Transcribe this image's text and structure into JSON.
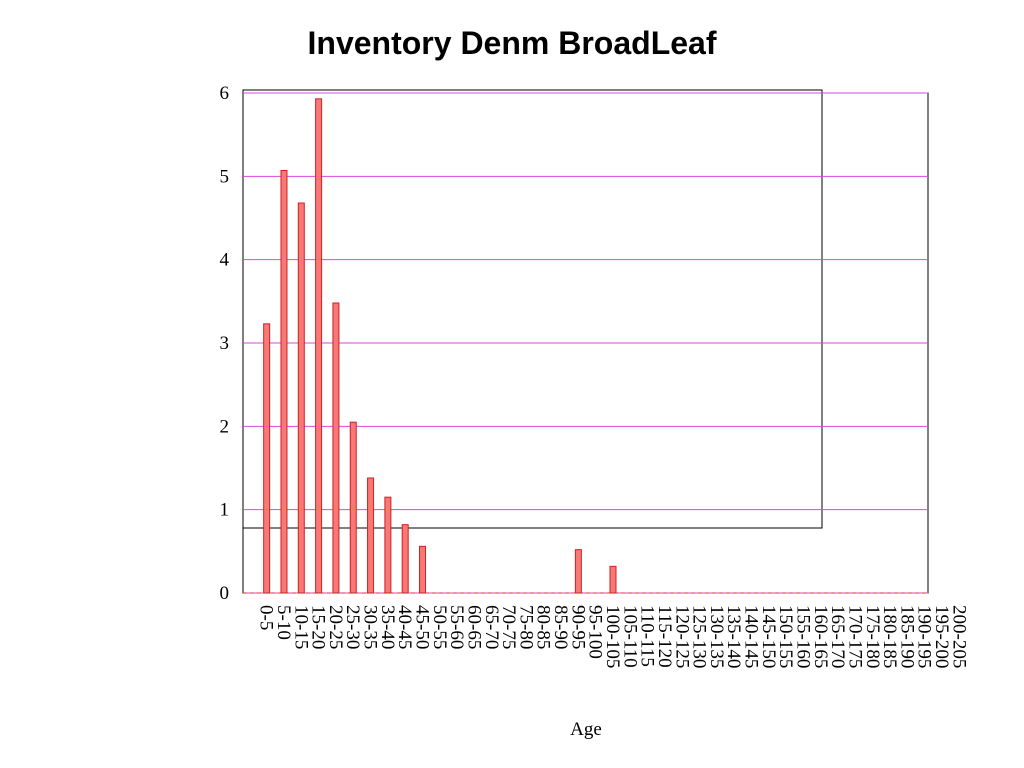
{
  "chart_data": {
    "type": "bar",
    "title": "Inventory Denm BroadLeaf",
    "x_label": "Age",
    "categories": [
      "0-5",
      "5-10",
      "10-15",
      "15-20",
      "20-25",
      "25-30",
      "30-35",
      "35-40",
      "40-45",
      "45-50",
      "50-55",
      "55-60",
      "60-65",
      "65-70",
      "70-75",
      "75-80",
      "80-85",
      "85-90",
      "90-95",
      "95-100",
      "100-105",
      "105-110",
      "110-115",
      "115-120",
      "120-125",
      "125-130",
      "130-135",
      "135-140",
      "140-145",
      "145-150",
      "150-155",
      "155-160",
      "160-165",
      "165-170",
      "170-175",
      "175-180",
      "180-185",
      "185-190",
      "190-195",
      "195-200",
      "200-205"
    ],
    "values": [
      3.23,
      5.07,
      4.68,
      5.93,
      3.48,
      2.05,
      1.38,
      1.15,
      0.82,
      0.56,
      0,
      0,
      0,
      0,
      0,
      0,
      0,
      0,
      0.52,
      0,
      0.32,
      0,
      0,
      0,
      0,
      0,
      0,
      0,
      0,
      0,
      0,
      0,
      0,
      0,
      0,
      0,
      0,
      0,
      0,
      0,
      0
    ],
    "color": "#f87878",
    "ylim": [
      0,
      6
    ],
    "yticks": [
      0,
      1,
      2,
      3,
      4,
      5,
      6
    ],
    "grid": true,
    "grid_color": "#dd44dd"
  }
}
